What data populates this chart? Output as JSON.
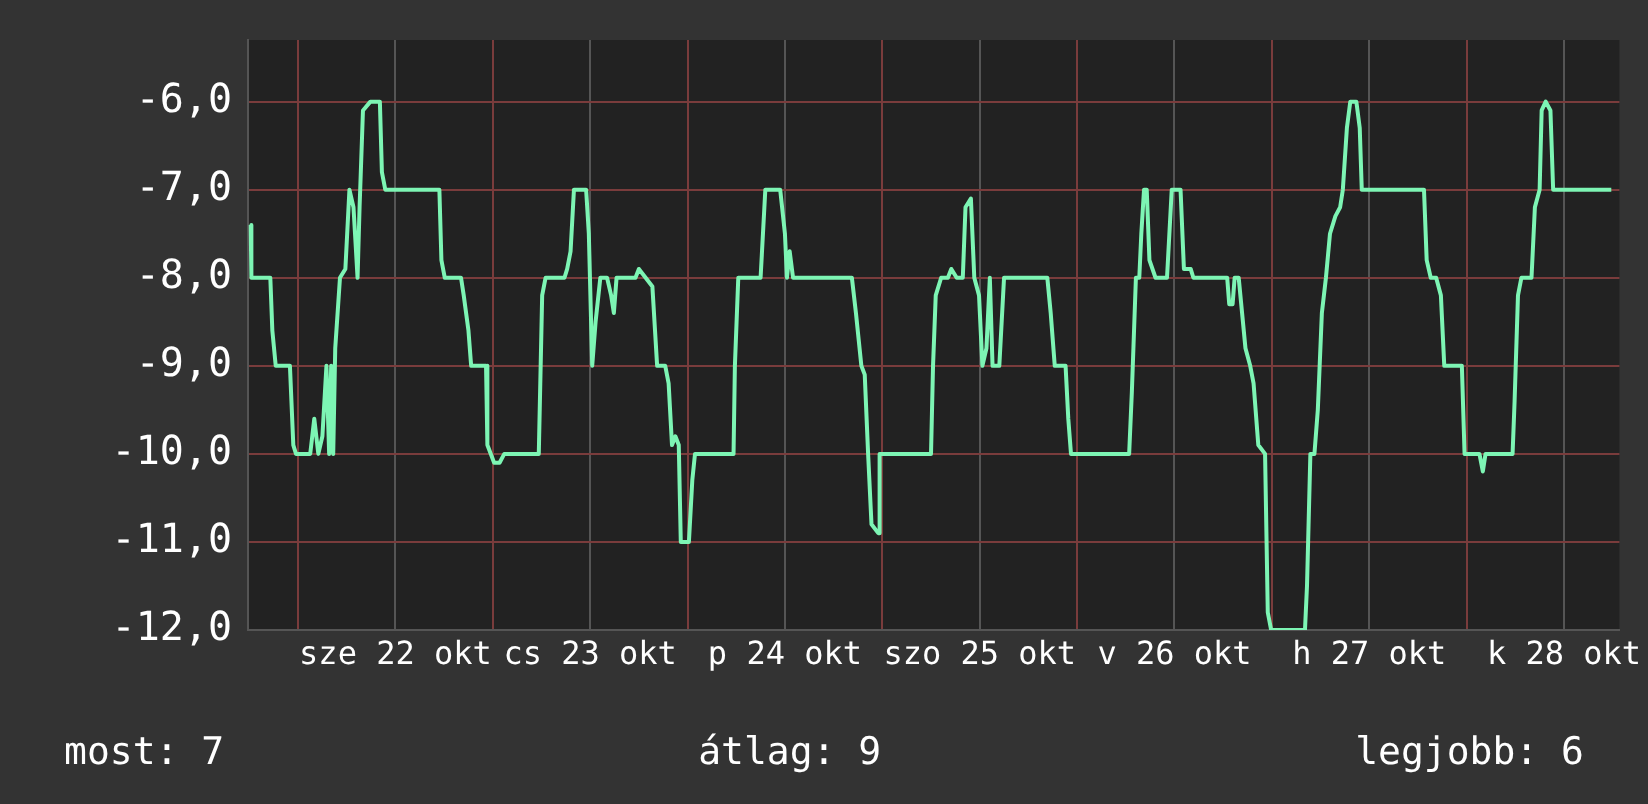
{
  "chart_data": {
    "type": "line",
    "x": [
      "--10-21T18:10",
      "--10-21T18:15",
      "--10-21T20:35",
      "--10-21T20:50",
      "--10-21T21:15",
      "--10-21T23:00",
      "--10-21T23:25",
      "--10-21T23:45",
      "--10-22T01:30",
      "--10-22T02:00",
      "--10-22T02:30",
      "--10-22T03:00",
      "--10-22T03:30",
      "--10-22T03:50",
      "--10-22T04:05",
      "--10-22T04:20",
      "--10-22T04:35",
      "--10-22T05:10",
      "--10-22T05:50",
      "--10-22T06:20",
      "--10-22T06:50",
      "--10-22T07:20",
      "--10-22T07:35",
      "--10-22T08:00",
      "--10-22T08:55",
      "--10-22T10:05",
      "--10-22T10:20",
      "--10-22T10:45",
      "--10-22T17:25",
      "--10-22T17:40",
      "--10-22T18:05",
      "--10-22T20:05",
      "--10-22T20:25",
      "--10-22T21:00",
      "--10-22T21:20",
      "--10-22T23:10",
      "--10-22T23:20",
      "--10-23T00:10",
      "--10-23T00:50",
      "--10-23T01:25",
      "--10-23T05:40",
      "--10-23T06:05",
      "--10-23T06:30",
      "--10-23T08:50",
      "--10-23T09:10",
      "--10-23T09:35",
      "--10-23T10:00",
      "--10-23T11:30",
      "--10-23T11:50",
      "--10-23T12:15",
      "--10-23T12:40",
      "--10-23T13:15",
      "--10-23T14:05",
      "--10-23T14:35",
      "--10-23T14:55",
      "--10-23T15:15",
      "--10-23T17:35",
      "--10-23T18:00",
      "--10-23T18:50",
      "--10-23T19:40",
      "--10-23T20:15",
      "--10-23T21:15",
      "--10-23T21:40",
      "--10-23T22:05",
      "--10-23T22:30",
      "--10-23T22:55",
      "--10-23T23:10",
      "--10-24T00:10",
      "--10-24T00:35",
      "--10-24T00:55",
      "--10-24T05:40",
      "--10-24T05:50",
      "--10-24T06:15",
      "--10-24T09:00",
      "--10-24T09:35",
      "--10-24T11:25",
      "--10-24T12:00",
      "--10-24T12:15",
      "--10-24T12:35",
      "--10-24T13:00",
      "--10-24T20:15",
      "--10-24T20:45",
      "--10-24T21:25",
      "--10-24T21:50",
      "--10-24T22:15",
      "--10-24T22:40",
      "--10-24T23:30",
      "--10-24T23:40",
      "--10-25T06:00",
      "--10-25T06:15",
      "--10-25T06:35",
      "--10-25T07:15",
      "--10-25T08:05",
      "--10-25T08:30",
      "--10-25T09:10",
      "--10-25T09:55",
      "--10-25T10:15",
      "--10-25T10:55",
      "--10-25T11:20",
      "--10-25T11:55",
      "--10-25T12:20",
      "--10-25T12:50",
      "--10-25T13:15",
      "--10-25T13:35",
      "--10-25T14:25",
      "--10-25T15:00",
      "--10-25T20:20",
      "--10-25T20:45",
      "--10-25T21:15",
      "--10-25T22:35",
      "--10-25T22:55",
      "--10-25T23:15",
      "--10-26T06:25",
      "--10-26T06:45",
      "--10-26T07:15",
      "--10-26T07:40",
      "--10-26T07:55",
      "--10-26T08:15",
      "--10-26T08:35",
      "--10-26T08:55",
      "--10-26T09:40",
      "--10-26T11:05",
      "--10-26T11:40",
      "--10-26T12:45",
      "--10-26T13:10",
      "--10-26T14:00",
      "--10-26T14:20",
      "--10-26T18:30",
      "--10-26T18:45",
      "--10-26T19:10",
      "--10-26T19:25",
      "--10-26T19:55",
      "--10-26T20:20",
      "--10-26T20:45",
      "--10-26T21:20",
      "--10-26T21:45",
      "--10-26T22:20",
      "--10-26T23:10",
      "--10-26T23:30",
      "--10-26T23:55",
      "--10-27T04:05",
      "--10-27T04:20",
      "--10-27T04:45",
      "--10-27T05:15",
      "--10-27T05:40",
      "--10-27T06:10",
      "--10-27T06:40",
      "--10-27T07:10",
      "--10-27T07:50",
      "--10-27T08:25",
      "--10-27T08:45",
      "--10-27T09:15",
      "--10-27T09:40",
      "--10-27T10:25",
      "--10-27T10:50",
      "--10-27T11:05",
      "--10-27T18:45",
      "--10-27T19:05",
      "--10-27T19:35",
      "--10-27T20:15",
      "--10-27T20:50",
      "--10-27T21:15",
      "--10-27T23:25",
      "--10-27T23:45",
      "--10-28T01:35",
      "--10-28T02:00",
      "--10-28T02:20",
      "--10-28T05:40",
      "--10-28T05:55",
      "--10-28T06:20",
      "--10-28T06:45",
      "--10-28T08:00",
      "--10-28T08:25",
      "--10-28T09:00",
      "--10-28T09:15",
      "--10-28T09:45",
      "--10-28T10:20",
      "--10-28T10:40",
      "--10-28T17:50"
    ],
    "series": [
      {
        "color": "#7df5b4",
        "values": [
          -7.4,
          -8.0,
          -8.0,
          -8.6,
          -9.0,
          -9.0,
          -9.9,
          -10.0,
          -10.0,
          -9.6,
          -10.0,
          -9.8,
          -9.0,
          -10.0,
          -9.0,
          -10.0,
          -8.8,
          -8.0,
          -7.9,
          -7.0,
          -7.2,
          -8.0,
          -7.2,
          -6.1,
          -6.0,
          -6.0,
          -6.8,
          -7.0,
          -7.0,
          -7.8,
          -8.0,
          -8.0,
          -8.2,
          -8.6,
          -9.0,
          -9.0,
          -9.9,
          -10.1,
          -10.1,
          -10.0,
          -10.0,
          -8.2,
          -8.0,
          -8.0,
          -7.9,
          -7.7,
          -7.0,
          -7.0,
          -7.5,
          -9.0,
          -8.5,
          -8.0,
          -8.0,
          -8.2,
          -8.4,
          -8.0,
          -8.0,
          -7.9,
          -8.0,
          -8.1,
          -9.0,
          -9.0,
          -9.2,
          -9.9,
          -9.8,
          -9.9,
          -11.0,
          -11.0,
          -10.3,
          -10.0,
          -10.0,
          -9.0,
          -8.0,
          -8.0,
          -7.0,
          -7.0,
          -7.5,
          -8.0,
          -7.7,
          -8.0,
          -8.0,
          -8.4,
          -9.0,
          -9.1,
          -10.0,
          -10.8,
          -10.9,
          -10.0,
          -10.0,
          -9.0,
          -8.2,
          -8.0,
          -8.0,
          -7.9,
          -8.0,
          -8.0,
          -7.2,
          -7.1,
          -8.0,
          -8.2,
          -9.0,
          -8.8,
          -8.0,
          -9.0,
          -9.0,
          -8.0,
          -8.0,
          -8.4,
          -9.0,
          -9.0,
          -9.6,
          -10.0,
          -10.0,
          -9.3,
          -8.0,
          -8.0,
          -7.5,
          -7.0,
          -7.0,
          -7.8,
          -8.0,
          -8.0,
          -7.0,
          -7.0,
          -7.9,
          -7.9,
          -8.0,
          -8.0,
          -8.3,
          -8.3,
          -8.0,
          -8.0,
          -8.4,
          -8.8,
          -9.0,
          -9.2,
          -9.9,
          -10.0,
          -11.8,
          -12.0,
          -12.0,
          -11.5,
          -10.0,
          -10.0,
          -9.5,
          -8.4,
          -8.0,
          -7.5,
          -7.3,
          -7.2,
          -7.0,
          -6.3,
          -6.0,
          -6.0,
          -6.3,
          -7.0,
          -7.0,
          -7.8,
          -8.0,
          -8.0,
          -8.2,
          -9.0,
          -9.0,
          -10.0,
          -10.0,
          -10.2,
          -10.0,
          -10.0,
          -9.4,
          -8.2,
          -8.0,
          -8.0,
          -7.2,
          -7.0,
          -6.1,
          -6.0,
          -6.1,
          -7.0,
          -7.0
        ]
      }
    ],
    "xlim": [
      "--10-21T17:50",
      "--10-28T18:50"
    ],
    "xticks": [
      {
        "value": "--10-22T00:00",
        "label": null
      },
      {
        "value": "--10-22T12:00",
        "label": "sze 22 okt"
      },
      {
        "value": "--10-23T00:00",
        "label": null
      },
      {
        "value": "--10-23T12:00",
        "label": "cs 23 okt"
      },
      {
        "value": "--10-24T00:00",
        "label": null
      },
      {
        "value": "--10-24T12:00",
        "label": "p 24 okt"
      },
      {
        "value": "--10-25T00:00",
        "label": null
      },
      {
        "value": "--10-25T12:00",
        "label": "szo 25 okt"
      },
      {
        "value": "--10-26T00:00",
        "label": null
      },
      {
        "value": "--10-26T12:00",
        "label": "v 26 okt"
      },
      {
        "value": "--10-27T00:00",
        "label": null
      },
      {
        "value": "--10-27T12:00",
        "label": "h 27 okt"
      },
      {
        "value": "--10-28T00:00",
        "label": null
      },
      {
        "value": "--10-28T12:00",
        "label": "k 28 okt"
      }
    ],
    "ylim": [
      -12,
      -5.3
    ],
    "yticks": [
      {
        "value": -12,
        "label": "-12,0"
      },
      {
        "value": -11,
        "label": "-11,0"
      },
      {
        "value": -10,
        "label": "-10,0"
      },
      {
        "value": -9,
        "label": "-9,0"
      },
      {
        "value": -8,
        "label": "-8,0"
      },
      {
        "value": -7,
        "label": "-7,0"
      },
      {
        "value": -6,
        "label": "-6,0"
      }
    ],
    "grid": true,
    "legend": false,
    "marker": "none",
    "line_style": "solid",
    "annotations": [
      "most: 7",
      "átlag: 9",
      "legjobb: 6"
    ]
  }
}
